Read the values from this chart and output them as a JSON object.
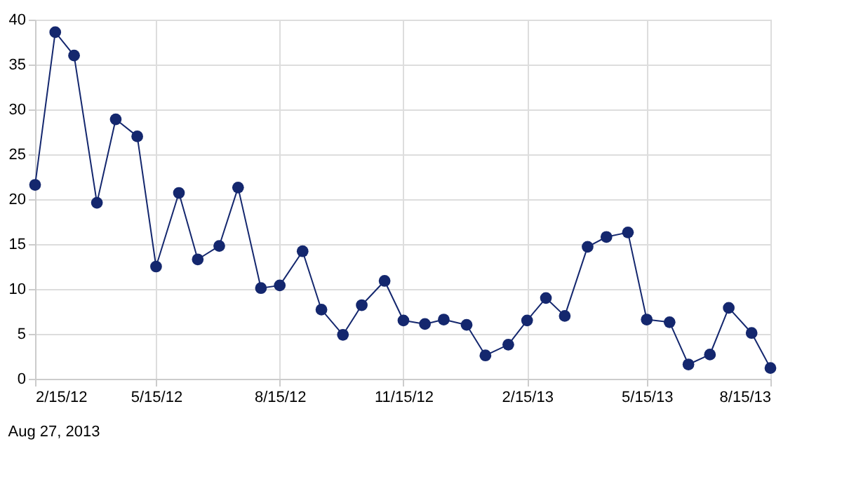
{
  "chart_data": {
    "type": "line",
    "x": [
      "2012-02-15",
      "2012-03-01",
      "2012-03-15",
      "2012-04-01",
      "2012-04-15",
      "2012-05-01",
      "2012-05-15",
      "2012-06-01",
      "2012-06-15",
      "2012-07-01",
      "2012-07-15",
      "2012-08-01",
      "2012-08-15",
      "2012-09-01",
      "2012-09-15",
      "2012-10-01",
      "2012-10-15",
      "2012-11-01",
      "2012-11-15",
      "2012-12-01",
      "2012-12-15",
      "2013-01-01",
      "2013-01-15",
      "2013-02-01",
      "2013-02-15",
      "2013-03-01",
      "2013-03-15",
      "2013-04-01",
      "2013-04-15",
      "2013-05-01",
      "2013-05-15",
      "2013-06-01",
      "2013-06-15",
      "2013-07-01",
      "2013-07-15",
      "2013-08-01",
      "2013-08-15"
    ],
    "series": [
      {
        "color": "#14276e",
        "values": [
          21.6,
          38.6,
          36,
          19.6,
          28.9,
          27,
          12.5,
          20.7,
          13.3,
          14.8,
          21.3,
          10.1,
          10.4,
          14.2,
          7.7,
          4.9,
          8.2,
          10.9,
          6.5,
          6.1,
          6.6,
          6.0,
          2.6,
          3.8,
          6.5,
          9.0,
          7.0,
          14.7,
          15.8,
          16.3,
          6.6,
          6.3,
          1.6,
          2.7,
          7.9,
          5.1,
          1.2
        ]
      }
    ],
    "xlim": [
      "2012-02-15",
      "2013-08-15"
    ],
    "xticks": [
      {
        "value": "2012-02-15",
        "label": "2/15/12"
      },
      {
        "value": "2012-05-15",
        "label": "5/15/12"
      },
      {
        "value": "2012-08-15",
        "label": "8/15/12"
      },
      {
        "value": "2012-11-15",
        "label": "11/15/12"
      },
      {
        "value": "2013-02-15",
        "label": "2/15/13"
      },
      {
        "value": "2013-05-15",
        "label": "5/15/13"
      },
      {
        "value": "2013-08-15",
        "label": "8/15/13"
      }
    ],
    "ylim": [
      0,
      40
    ],
    "yticks": [
      0,
      5,
      10,
      15,
      20,
      25,
      30,
      35,
      40
    ],
    "grid": true,
    "marker": "circle",
    "line_style": "solid",
    "annotations": [
      "Aug 27, 2013"
    ]
  }
}
